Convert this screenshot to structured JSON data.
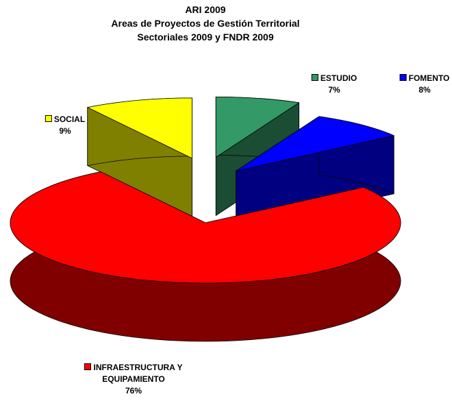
{
  "chart_data": {
    "type": "pie",
    "title": "ARI 2009",
    "subtitle": [
      "Areas de Proyectos de Gestión Territorial",
      "Sectoriales 2009 y FNDR 2009"
    ],
    "categories": [
      "ESTUDIO",
      "FOMENTO",
      "INFRAESTRUCTURA Y EQUIPAMIENTO",
      "SOCIAL"
    ],
    "values": [
      7,
      8,
      76,
      9
    ],
    "value_labels": [
      "7%",
      "8%",
      "76%",
      "9%"
    ],
    "colors": [
      "#339966",
      "#0000ff",
      "#ff0000",
      "#ffff00"
    ]
  }
}
